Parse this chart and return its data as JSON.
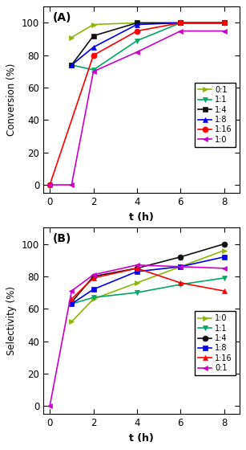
{
  "panel_A": {
    "title": "(A)",
    "ylabel": "Conversion (%)",
    "xlabel": "t (h)",
    "series": [
      {
        "label": "0:1",
        "color": "#8db600",
        "marker": ">",
        "markersize": 5,
        "x": [
          1,
          2,
          4,
          6,
          8
        ],
        "y": [
          91,
          99,
          100,
          100,
          100
        ]
      },
      {
        "label": "1:1",
        "color": "#00aa66",
        "marker": "v",
        "markersize": 5,
        "x": [
          1,
          2,
          4,
          6,
          8
        ],
        "y": [
          74,
          71,
          89,
          100,
          100
        ]
      },
      {
        "label": "1:4",
        "color": "#111111",
        "marker": "s",
        "markersize": 5,
        "x": [
          1,
          2,
          4,
          6,
          8
        ],
        "y": [
          74,
          92,
          100,
          100,
          100
        ]
      },
      {
        "label": "1:8",
        "color": "#0000ee",
        "marker": "^",
        "markersize": 5,
        "x": [
          1,
          2,
          4,
          6,
          8
        ],
        "y": [
          74,
          85,
          99,
          100,
          100
        ]
      },
      {
        "label": "1:16",
        "color": "#ff0000",
        "marker": "o",
        "markersize": 5,
        "x": [
          0,
          2,
          4,
          6,
          8
        ],
        "y": [
          0,
          80,
          95,
          100,
          100
        ]
      },
      {
        "label": "1:0",
        "color": "#cc00cc",
        "marker": "<",
        "markersize": 5,
        "x": [
          0,
          1,
          2,
          4,
          6,
          8
        ],
        "y": [
          0,
          0,
          70,
          82,
          95,
          95
        ]
      }
    ]
  },
  "panel_B": {
    "title": "(B)",
    "ylabel": "Selectivity (%)",
    "xlabel": "t (h)",
    "series": [
      {
        "label": "1:0",
        "color": "#8db600",
        "marker": ">",
        "markersize": 5,
        "x": [
          1,
          2,
          4,
          6,
          8
        ],
        "y": [
          52,
          66,
          76,
          86,
          96
        ]
      },
      {
        "label": "1:1",
        "color": "#00aa66",
        "marker": "v",
        "markersize": 5,
        "x": [
          1,
          2,
          4,
          6,
          8
        ],
        "y": [
          63,
          67,
          70,
          75,
          79
        ]
      },
      {
        "label": "1:4",
        "color": "#111111",
        "marker": "o",
        "markersize": 5,
        "x": [
          1,
          2,
          4,
          6,
          8
        ],
        "y": [
          64,
          80,
          85,
          92,
          100
        ]
      },
      {
        "label": "1:8",
        "color": "#0000ee",
        "marker": "s",
        "markersize": 5,
        "x": [
          1,
          2,
          4,
          6,
          8
        ],
        "y": [
          63,
          72,
          83,
          86,
          92
        ]
      },
      {
        "label": "1:16",
        "color": "#ff0000",
        "marker": "^",
        "markersize": 5,
        "x": [
          1,
          2,
          4,
          6,
          8
        ],
        "y": [
          66,
          79,
          85,
          76,
          71
        ]
      },
      {
        "label": "0:1",
        "color": "#cc00cc",
        "marker": "<",
        "markersize": 5,
        "x": [
          0,
          1,
          2,
          4,
          6,
          8
        ],
        "y": [
          0,
          71,
          81,
          87,
          86,
          85
        ]
      }
    ]
  },
  "xlim": [
    -0.3,
    8.7
  ],
  "ylim": [
    -5,
    110
  ],
  "xticks": [
    0,
    2,
    4,
    6,
    8
  ],
  "yticks": [
    0,
    20,
    40,
    60,
    80,
    100
  ]
}
